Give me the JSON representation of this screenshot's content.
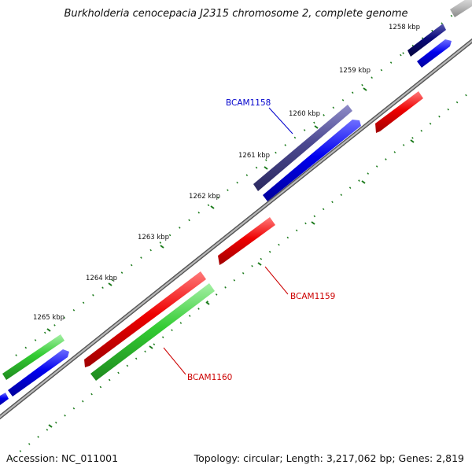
{
  "title": "Burkholderia cenocepacia J2315 chromosome 2, complete genome",
  "accession": "Accession: NC_011001",
  "summary": "Topology: circular; Length: 3,217,062 bp; Genes: 2,819",
  "ticks": [
    {
      "label": "1258 kbp"
    },
    {
      "label": "1259 kbp"
    },
    {
      "label": "1260 kbp"
    },
    {
      "label": "1261 kbp"
    },
    {
      "label": "1262 kbp"
    },
    {
      "label": "1263 kbp"
    },
    {
      "label": "1264 kbp"
    },
    {
      "label": "1265 kbp"
    }
  ],
  "genes": [
    {
      "label": "BCAM1158",
      "color": "#0000cc"
    },
    {
      "label": "BCAM1159",
      "color": "#cc0000"
    },
    {
      "label": "BCAM1160",
      "color": "#cc0000"
    }
  ],
  "colors": {
    "cds_forward": "#0000ee",
    "cds_reverse": "#ee0000",
    "gene_purple": "#4b4890",
    "gene_navy": "#0a0a7a",
    "gene_green": "#33cc33",
    "backbone": "#888888",
    "gc_skew": "#1a7a1a"
  }
}
